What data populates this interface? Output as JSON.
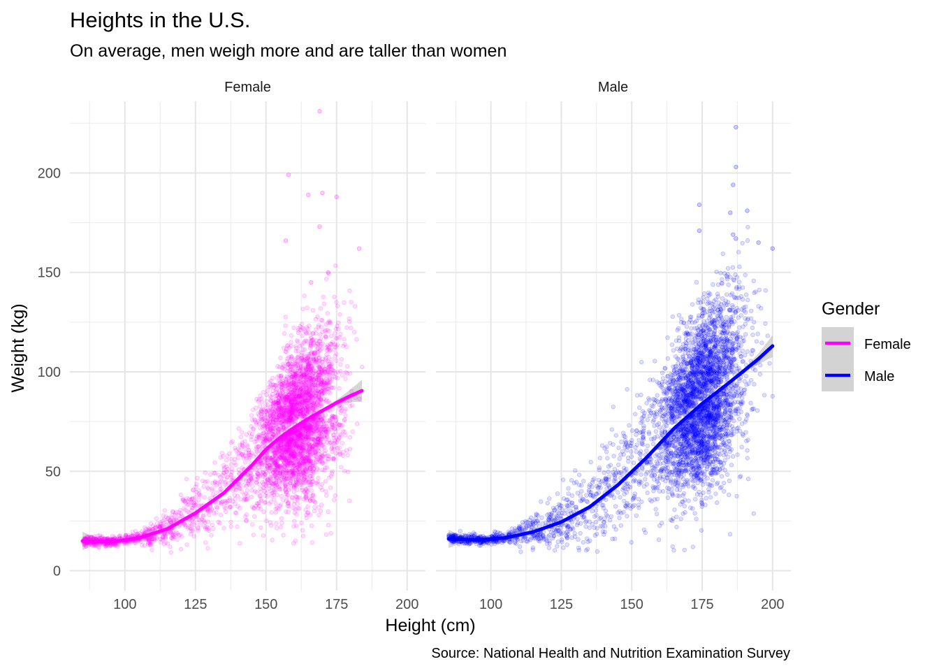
{
  "chart_data": {
    "type": "scatter",
    "title": "Heights in the U.S.",
    "subtitle": "On average, men weigh more and are taller than women",
    "caption": "Source: National Health and Nutrition Examination Survey",
    "xlabel": "Height (cm)",
    "ylabel": "Weight (kg)",
    "xlim": [
      80.5,
      206.5
    ],
    "ylim": [
      -10,
      236
    ],
    "x_ticks": [
      100,
      125,
      150,
      175,
      200
    ],
    "x_tick_labels": [
      "100",
      "125",
      "150",
      "175",
      "200"
    ],
    "y_ticks": [
      0,
      50,
      100,
      150,
      200
    ],
    "y_tick_labels": [
      "0",
      "50",
      "100",
      "150",
      "200"
    ],
    "grid": true,
    "facets": [
      "Female",
      "Male"
    ],
    "legend": {
      "title": "Gender",
      "position": "right",
      "entries": [
        {
          "label": "Female",
          "color": "#ff00ff"
        },
        {
          "label": "Male",
          "color": "#0000ff"
        }
      ]
    },
    "series": [
      {
        "name": "Female",
        "color": "#ff00ff",
        "x_range": [
          85,
          184
        ],
        "points_shown": 4000,
        "smooth": {
          "x": [
            85,
            95,
            105,
            115,
            125,
            135,
            145,
            150,
            155,
            160,
            165,
            170,
            175,
            180,
            184
          ],
          "y": [
            15,
            14.5,
            16.5,
            21,
            29,
            39,
            53,
            61,
            67,
            72,
            76.5,
            80.5,
            84.5,
            88,
            90.5
          ]
        },
        "outliers": [
          [
            169,
            231
          ],
          [
            158,
            199
          ],
          [
            170,
            190
          ],
          [
            165,
            189
          ],
          [
            175,
            188
          ],
          [
            169,
            173
          ],
          [
            157,
            166
          ],
          [
            183,
            162
          ],
          [
            172,
            150
          ],
          [
            166,
            145
          ]
        ]
      },
      {
        "name": "Male",
        "color": "#0000ff",
        "x_range": [
          85,
          200
        ],
        "points_shown": 4000,
        "smooth": {
          "x": [
            85,
            95,
            105,
            115,
            125,
            135,
            145,
            155,
            165,
            175,
            185,
            195,
            200
          ],
          "y": [
            16,
            15.5,
            16.5,
            19.5,
            24.5,
            32,
            43,
            56.5,
            71.5,
            84,
            95,
            106.5,
            113
          ]
        },
        "outliers": [
          [
            187,
            223
          ],
          [
            187,
            203
          ],
          [
            186,
            194
          ],
          [
            174,
            184
          ],
          [
            191,
            181
          ],
          [
            185,
            180
          ],
          [
            174,
            171
          ],
          [
            186,
            169
          ],
          [
            187,
            167
          ],
          [
            195,
            165
          ],
          [
            200,
            162
          ]
        ]
      }
    ]
  }
}
